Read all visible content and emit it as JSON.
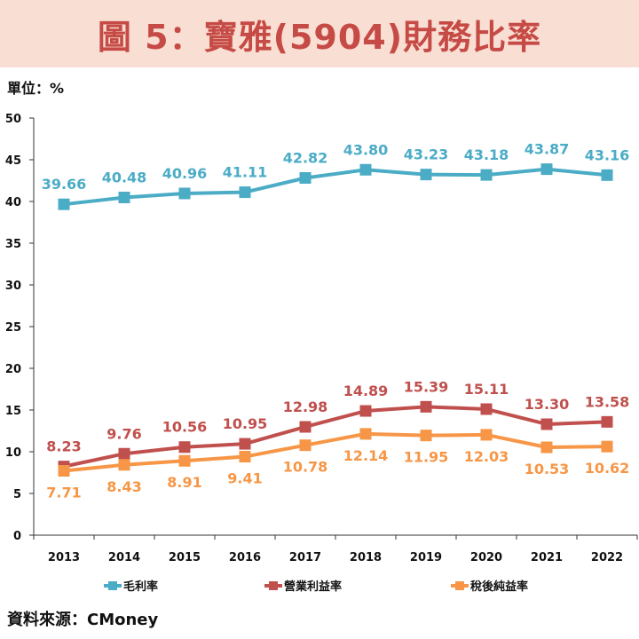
{
  "header": {
    "title": "圖 5：寶雅(5904)財務比率",
    "unit_label": "單位：%",
    "source_label": "資料來源：CMoney"
  },
  "chart_data": {
    "type": "line",
    "title": "圖 5：寶雅(5904)財務比率",
    "xlabel": "",
    "ylabel": "單位：%",
    "ylim": [
      0,
      50
    ],
    "yticks": [
      0,
      5,
      10,
      15,
      20,
      25,
      30,
      35,
      40,
      45,
      50
    ],
    "categories": [
      "2013",
      "2014",
      "2015",
      "2016",
      "2017",
      "2018",
      "2019",
      "2020",
      "2021",
      "2022"
    ],
    "legend_position": "bottom",
    "series": [
      {
        "name": "毛利率",
        "color": "#4bacc6",
        "label_position": "above",
        "values": [
          39.66,
          40.48,
          40.96,
          41.11,
          42.82,
          43.8,
          43.23,
          43.18,
          43.87,
          43.16
        ],
        "labels": [
          "39.66",
          "40.48",
          "40.96",
          "41.11",
          "42.82",
          "43.80",
          "43.23",
          "43.18",
          "43.87",
          "43.16"
        ]
      },
      {
        "name": "營業利益率",
        "color": "#c0504d",
        "label_position": "above",
        "values": [
          8.23,
          9.76,
          10.56,
          10.95,
          12.98,
          14.89,
          15.39,
          15.11,
          13.3,
          13.58
        ],
        "labels": [
          "8.23",
          "9.76",
          "10.56",
          "10.95",
          "12.98",
          "14.89",
          "15.39",
          "15.11",
          "13.30",
          "13.58"
        ]
      },
      {
        "name": "稅後純益率",
        "color": "#f79646",
        "label_position": "below",
        "values": [
          7.71,
          8.43,
          8.91,
          9.41,
          10.78,
          12.14,
          11.95,
          12.03,
          10.53,
          10.62
        ],
        "labels": [
          "7.71",
          "8.43",
          "8.91",
          "9.41",
          "10.78",
          "12.14",
          "11.95",
          "12.03",
          "10.53",
          "10.62"
        ]
      }
    ]
  }
}
